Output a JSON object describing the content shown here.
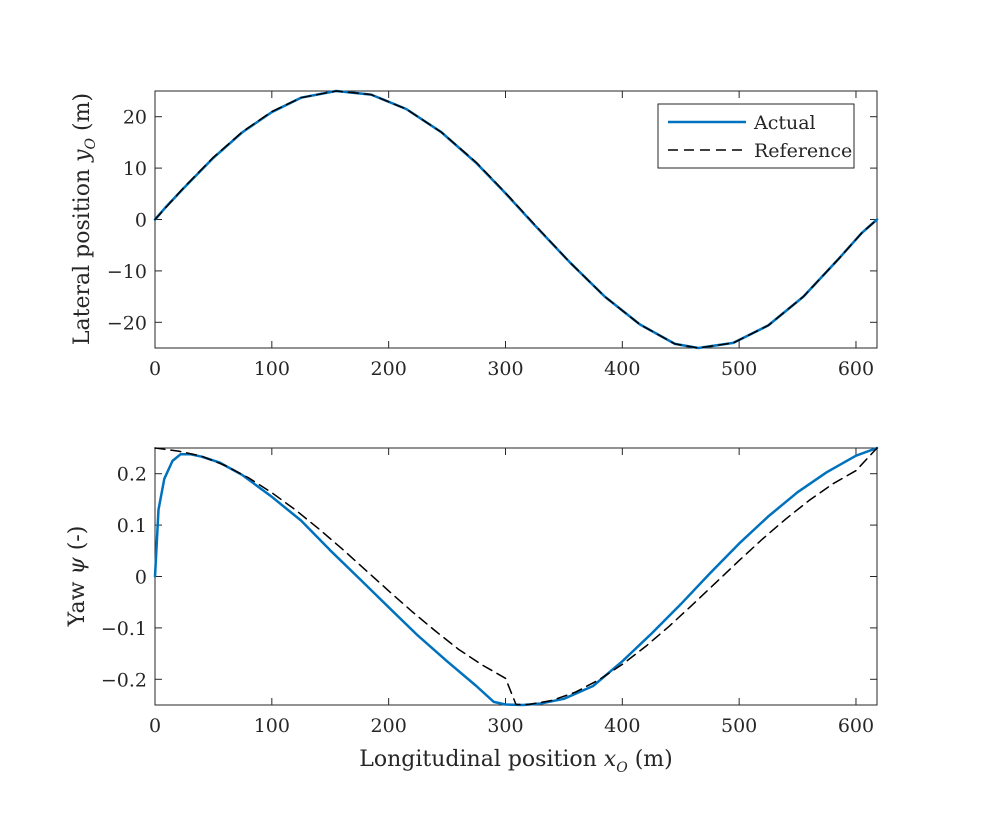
{
  "chart_data": [
    {
      "type": "line",
      "title": "",
      "xlabel": "",
      "ylabel": "Lateral position y_O (m)",
      "ylabel_main": "Lateral position ",
      "ylabel_var": "y",
      "ylabel_sub": "O",
      "ylabel_unit": " (m)",
      "xlim": [
        0,
        618
      ],
      "ylim": [
        -25,
        25
      ],
      "xticks": [
        0,
        100,
        200,
        300,
        400,
        500,
        600
      ],
      "xticklabels": [
        "0",
        "100",
        "200",
        "300",
        "400",
        "500",
        "600"
      ],
      "yticks": [
        -20,
        -10,
        0,
        10,
        20
      ],
      "yticklabels": [
        "−20",
        "−10",
        "0",
        "10",
        "20"
      ],
      "grid": false,
      "legend_position": "top-right",
      "series": [
        {
          "name": "Actual",
          "color": "#0072BD",
          "style": "solid",
          "x": [
            0,
            10,
            25,
            50,
            75,
            100,
            125,
            155,
            185,
            215,
            245,
            275,
            300,
            325,
            355,
            385,
            415,
            445,
            465,
            495,
            525,
            555,
            585,
            605,
            618
          ],
          "y": [
            0,
            2.6,
            6.2,
            12.0,
            17.0,
            20.9,
            23.7,
            25.0,
            24.3,
            21.5,
            17.0,
            11.0,
            5.1,
            -1.1,
            -8.3,
            -15.0,
            -20.4,
            -24.2,
            -25.0,
            -24.0,
            -20.6,
            -15.0,
            -7.7,
            -2.6,
            0
          ]
        },
        {
          "name": "Reference",
          "color": "#000000",
          "style": "dashed",
          "x": [
            0,
            10,
            25,
            50,
            75,
            100,
            125,
            155,
            185,
            215,
            245,
            275,
            300,
            325,
            355,
            385,
            415,
            445,
            465,
            495,
            525,
            555,
            585,
            605,
            618
          ],
          "y": [
            0,
            2.5,
            6.3,
            12.1,
            17.1,
            21.0,
            23.7,
            25.0,
            24.3,
            21.5,
            17.0,
            11.1,
            5.2,
            -1.0,
            -8.3,
            -15.0,
            -20.4,
            -24.2,
            -25.0,
            -24.0,
            -20.6,
            -15.0,
            -7.7,
            -2.6,
            0
          ]
        }
      ],
      "legend": [
        "Actual",
        "Reference"
      ]
    },
    {
      "type": "line",
      "title": "",
      "xlabel": "Longitudinal position x_O (m)",
      "xlabel_main": "Longitudinal position ",
      "xlabel_var": "x",
      "xlabel_sub": "O",
      "xlabel_unit": " (m)",
      "ylabel": "Yaw ψ (-)",
      "ylabel_main": "Yaw ",
      "ylabel_var": "ψ",
      "ylabel_unit": " (-)",
      "xlim": [
        0,
        618
      ],
      "ylim": [
        -0.25,
        0.25
      ],
      "xticks": [
        0,
        100,
        200,
        300,
        400,
        500,
        600
      ],
      "xticklabels": [
        "0",
        "100",
        "200",
        "300",
        "400",
        "500",
        "600"
      ],
      "yticks": [
        -0.2,
        -0.1,
        0,
        0.1,
        0.2
      ],
      "yticklabels": [
        "−0.2",
        "−0.1",
        "0",
        "0.1",
        "0.2"
      ],
      "grid": false,
      "series": [
        {
          "name": "Actual",
          "color": "#0072BD",
          "style": "solid",
          "x": [
            0,
            3,
            8,
            15,
            22,
            30,
            40,
            55,
            75,
            100,
            125,
            150,
            175,
            200,
            225,
            250,
            275,
            290,
            300,
            315,
            330,
            350,
            375,
            400,
            425,
            450,
            475,
            500,
            525,
            550,
            575,
            600,
            618
          ],
          "y": [
            0,
            0.13,
            0.19,
            0.225,
            0.238,
            0.238,
            0.233,
            0.222,
            0.197,
            0.155,
            0.109,
            0.051,
            -0.004,
            -0.06,
            -0.115,
            -0.165,
            -0.213,
            -0.244,
            -0.249,
            -0.25,
            -0.247,
            -0.238,
            -0.213,
            -0.165,
            -0.111,
            -0.054,
            0.006,
            0.064,
            0.117,
            0.164,
            0.203,
            0.235,
            0.25
          ]
        },
        {
          "name": "Reference",
          "color": "#000000",
          "style": "dashed",
          "x": [
            0,
            20,
            40,
            60,
            80,
            100,
            120,
            140,
            160,
            180,
            200,
            220,
            240,
            260,
            280,
            300,
            309,
            320,
            340,
            360,
            380,
            400,
            420,
            440,
            460,
            480,
            500,
            520,
            540,
            560,
            580,
            600,
            618
          ],
          "y": [
            0.25,
            0.244,
            0.234,
            0.216,
            0.192,
            0.163,
            0.13,
            0.093,
            0.054,
            0.013,
            -0.028,
            -0.068,
            -0.106,
            -0.142,
            -0.172,
            -0.198,
            -0.249,
            -0.249,
            -0.241,
            -0.225,
            -0.201,
            -0.171,
            -0.136,
            -0.097,
            -0.055,
            -0.012,
            0.031,
            0.073,
            0.112,
            0.148,
            0.18,
            0.206,
            0.25
          ]
        }
      ]
    }
  ]
}
